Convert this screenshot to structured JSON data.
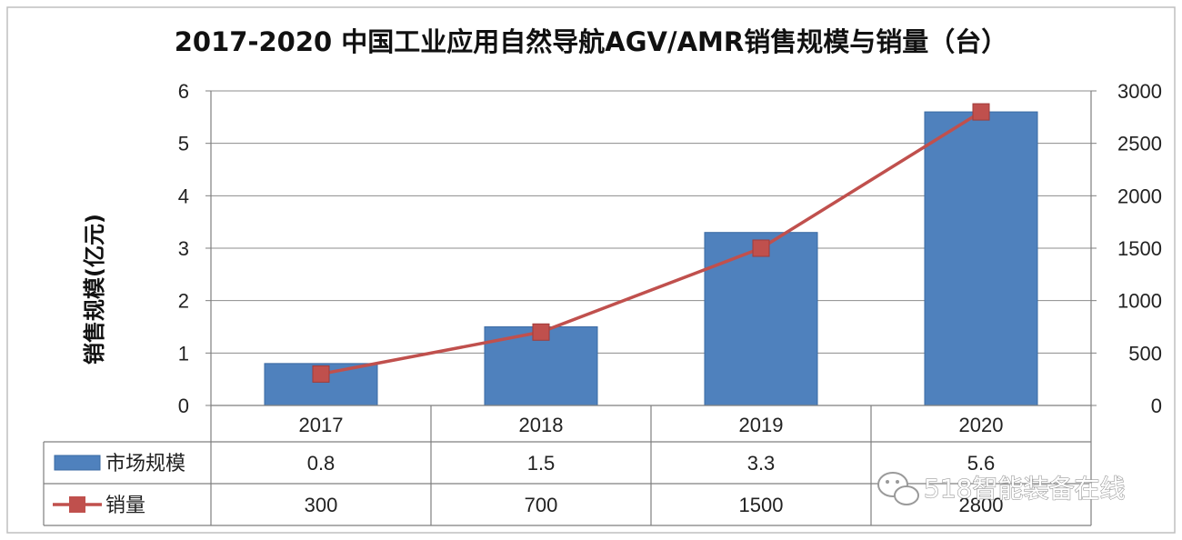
{
  "chart_data": {
    "type": "bar",
    "title": "2017-2020 中国工业应用自然导航AGV/AMR销售规模与销量（台）",
    "ylabel": "销售规模(亿元)",
    "y2label": "",
    "categories": [
      "2017",
      "2018",
      "2019",
      "2020"
    ],
    "ylim": [
      0,
      6
    ],
    "y2lim": [
      0,
      3000
    ],
    "yticks": [
      "0",
      "1",
      "2",
      "3",
      "4",
      "5",
      "6"
    ],
    "y2ticks": [
      "0",
      "500",
      "1000",
      "1500",
      "2000",
      "2500",
      "3000"
    ],
    "grid": true,
    "legend": "bottom-left data table",
    "series": [
      {
        "name": "市场规模",
        "type": "bar",
        "axis": "left",
        "color": "#4f81bd",
        "values": [
          0.8,
          1.5,
          3.3,
          5.6
        ],
        "labels": [
          "0.8",
          "1.5",
          "3.3",
          "5.6"
        ]
      },
      {
        "name": "销量",
        "type": "line",
        "axis": "right",
        "color": "#c0504d",
        "values": [
          300,
          700,
          1500,
          2800
        ],
        "labels": [
          "300",
          "700",
          "1500",
          "2800"
        ]
      }
    ]
  },
  "watermark": {
    "text": "518智能装备在线",
    "icon": "wechat-icon"
  }
}
